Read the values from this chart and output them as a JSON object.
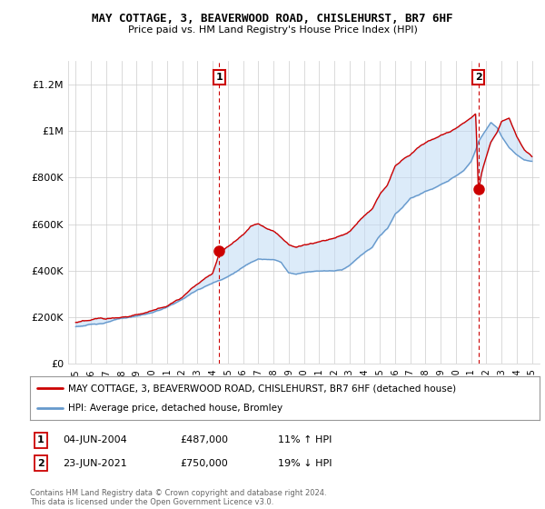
{
  "title": "MAY COTTAGE, 3, BEAVERWOOD ROAD, CHISLEHURST, BR7 6HF",
  "subtitle": "Price paid vs. HM Land Registry's House Price Index (HPI)",
  "ylabel_ticks": [
    "£0",
    "£200K",
    "£400K",
    "£600K",
    "£800K",
    "£1M",
    "£1.2M"
  ],
  "ytick_vals": [
    0,
    200000,
    400000,
    600000,
    800000,
    1000000,
    1200000
  ],
  "ylim": [
    0,
    1300000
  ],
  "xlim_start": 1994.5,
  "xlim_end": 2025.5,
  "sale1_x": 2004.43,
  "sale1_y": 487000,
  "sale2_x": 2021.48,
  "sale2_y": 750000,
  "legend_red": "MAY COTTAGE, 3, BEAVERWOOD ROAD, CHISLEHURST, BR7 6HF (detached house)",
  "legend_blue": "HPI: Average price, detached house, Bromley",
  "footnote": "Contains HM Land Registry data © Crown copyright and database right 2024.\nThis data is licensed under the Open Government Licence v3.0.",
  "red_color": "#cc0000",
  "blue_color": "#6699cc",
  "fill_color": "#ddeeff",
  "grid_color": "#cccccc",
  "bg_color": "#ffffff",
  "table_row1": [
    "1",
    "04-JUN-2004",
    "£487,000",
    "11% ↑ HPI"
  ],
  "table_row2": [
    "2",
    "23-JUN-2021",
    "£750,000",
    "19% ↓ HPI"
  ],
  "hpi_anchors_x": [
    1995,
    1996,
    1997,
    1998,
    1999,
    2000,
    2001,
    2002,
    2003,
    2004,
    2005,
    2006,
    2007,
    2008,
    2008.5,
    2009,
    2009.5,
    2010,
    2011,
    2012,
    2012.5,
    2013,
    2014,
    2014.5,
    2015,
    2015.5,
    2016,
    2016.5,
    2017,
    2017.5,
    2018,
    2018.5,
    2019,
    2019.5,
    2020,
    2020.5,
    2021,
    2021.3,
    2021.5,
    2021.8,
    2022,
    2022.3,
    2022.7,
    2023,
    2023.5,
    2024,
    2024.5,
    2025
  ],
  "hpi_anchors_y": [
    160000,
    168000,
    178000,
    193000,
    203000,
    218000,
    240000,
    273000,
    315000,
    345000,
    375000,
    415000,
    455000,
    450000,
    440000,
    395000,
    390000,
    400000,
    408000,
    410000,
    415000,
    435000,
    490000,
    510000,
    560000,
    590000,
    650000,
    680000,
    720000,
    730000,
    750000,
    760000,
    775000,
    790000,
    810000,
    830000,
    870000,
    920000,
    960000,
    990000,
    1010000,
    1040000,
    1020000,
    980000,
    930000,
    900000,
    875000,
    870000
  ],
  "red_anchors_x": [
    1995,
    1996,
    1997,
    1998,
    1999,
    2000,
    2001,
    2002,
    2003,
    2004,
    2004.43,
    2005,
    2006,
    2006.5,
    2007,
    2007.5,
    2008,
    2008.5,
    2009,
    2009.5,
    2010,
    2011,
    2012,
    2013,
    2014,
    2014.5,
    2015,
    2015.5,
    2016,
    2016.5,
    2017,
    2017.5,
    2018,
    2018.5,
    2019,
    2019.5,
    2020,
    2020.5,
    2021,
    2021.3,
    2021.48,
    2021.7,
    2022,
    2022.3,
    2022.7,
    2023,
    2023.5,
    2024,
    2024.5,
    2025
  ],
  "red_anchors_y": [
    178000,
    185000,
    196000,
    208000,
    220000,
    238000,
    260000,
    298000,
    355000,
    400000,
    487000,
    520000,
    570000,
    610000,
    625000,
    605000,
    590000,
    565000,
    535000,
    520000,
    530000,
    540000,
    555000,
    580000,
    650000,
    680000,
    740000,
    780000,
    860000,
    890000,
    910000,
    940000,
    960000,
    975000,
    990000,
    1005000,
    1020000,
    1040000,
    1060000,
    1080000,
    750000,
    830000,
    900000,
    960000,
    1000000,
    1050000,
    1060000,
    980000,
    920000,
    890000
  ]
}
